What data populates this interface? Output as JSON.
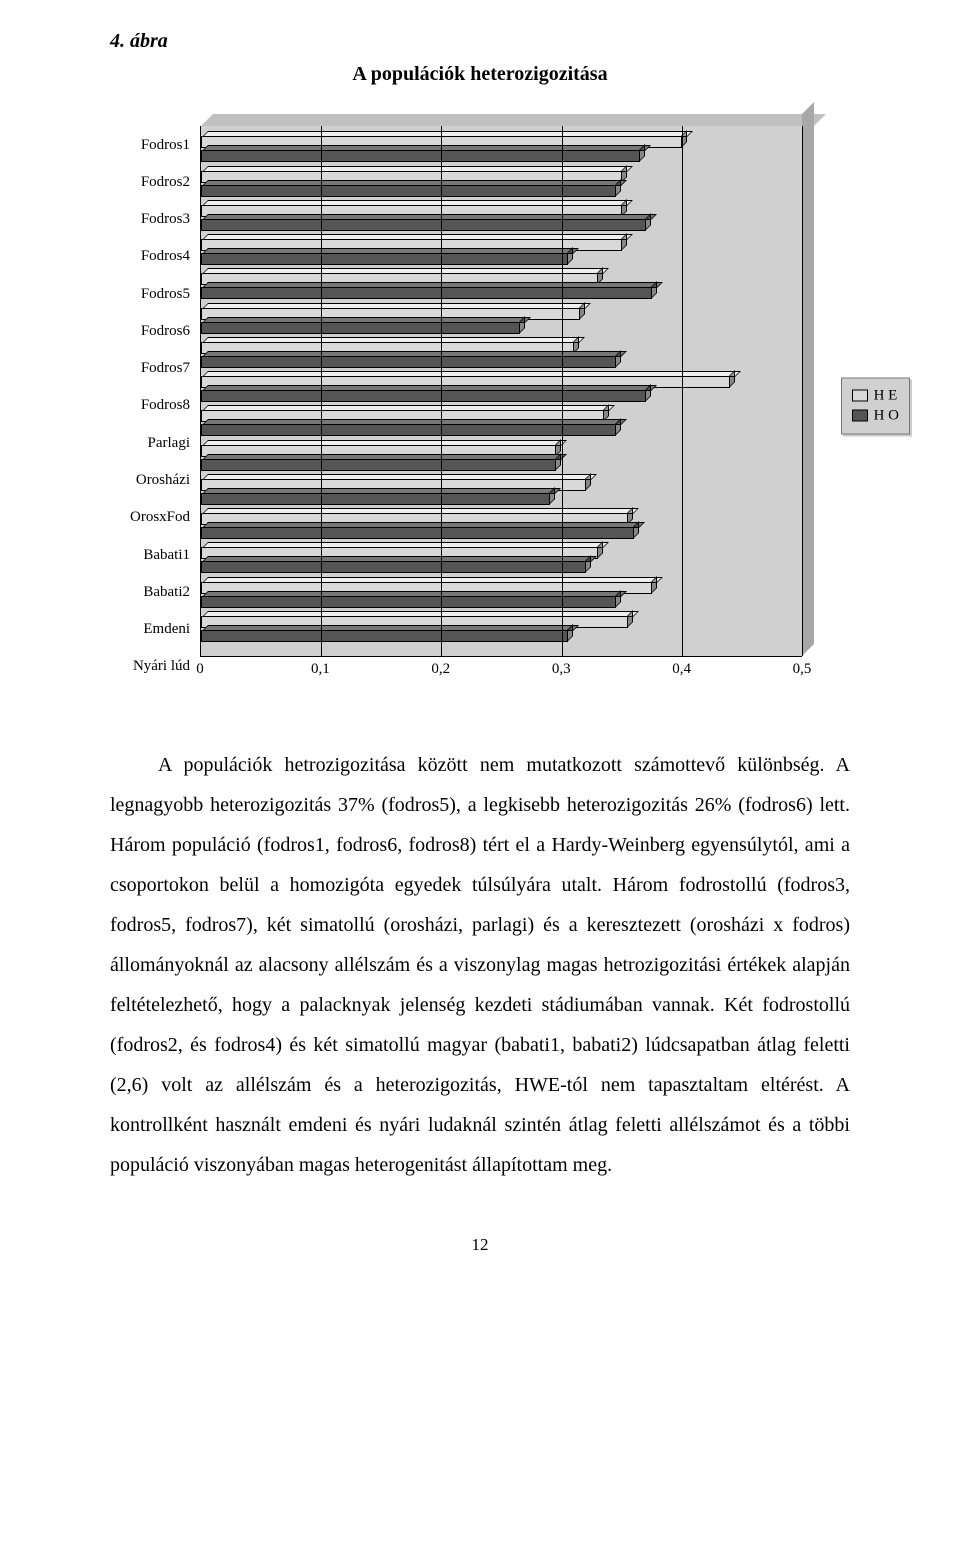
{
  "figure": {
    "number": "4. ábra",
    "title": "A populációk heterozigozitása",
    "type": "bar",
    "orientation": "horizontal",
    "xlim": [
      0,
      0.5
    ],
    "xtick_step": 0.1,
    "xticks": [
      "0",
      "0,1",
      "0,2",
      "0,3",
      "0,4",
      "0,5"
    ],
    "background_color": "#d0d0d0",
    "grid_color": "#000000",
    "bar_colors": {
      "HE": "#d9d9d9",
      "HO": "#555555"
    },
    "legend_items": [
      "H E",
      "H O"
    ],
    "categories": [
      {
        "label": "Fodros1",
        "HE": 0.4,
        "HO": 0.365
      },
      {
        "label": "Fodros2",
        "HE": 0.35,
        "HO": 0.345
      },
      {
        "label": "Fodros3",
        "HE": 0.35,
        "HO": 0.37
      },
      {
        "label": "Fodros4",
        "HE": 0.35,
        "HO": 0.305
      },
      {
        "label": "Fodros5",
        "HE": 0.33,
        "HO": 0.375
      },
      {
        "label": "Fodros6",
        "HE": 0.315,
        "HO": 0.265
      },
      {
        "label": "Fodros7",
        "HE": 0.31,
        "HO": 0.345
      },
      {
        "label": "Fodros8",
        "HE": 0.44,
        "HO": 0.37
      },
      {
        "label": "Parlagi",
        "HE": 0.335,
        "HO": 0.345
      },
      {
        "label": "Orosházi",
        "HE": 0.295,
        "HO": 0.295
      },
      {
        "label": "OrosxFod",
        "HE": 0.32,
        "HO": 0.29
      },
      {
        "label": "Babati1",
        "HE": 0.355,
        "HO": 0.36
      },
      {
        "label": "Babati2",
        "HE": 0.33,
        "HO": 0.32
      },
      {
        "label": "Emdeni",
        "HE": 0.375,
        "HO": 0.345
      },
      {
        "label": "Nyári lúd",
        "HE": 0.355,
        "HO": 0.305
      }
    ],
    "label_fontsize": 15,
    "tick_fontsize": 15
  },
  "paragraph": "A populációk hetrozigozitása között nem mutatkozott számottevő különbség. A legnagyobb heterozigozitás 37% (fodros5), a legkisebb heterozigozitás 26% (fodros6) lett. Három populáció (fodros1, fodros6, fodros8) tért el a Hardy-Weinberg egyensúlytól, ami a csoportokon belül a homozigóta egyedek túlsúlyára utalt. Három fodrostollú (fodros3, fodros5, fodros7), két simatollú (orosházi, parlagi) és a keresztezett (orosházi x fodros) állományoknál az alacsony allélszám és a viszonylag magas hetrozigozitási értékek alapján feltételezhető, hogy a palacknyak jelenség kezdeti stádiumában vannak. Két fodrostollú (fodros2, és fodros4) és két simatollú magyar (babati1, babati2) lúdcsapatban átlag feletti (2,6) volt az allélszám és a heterozigozitás, HWE-tól nem tapasztaltam eltérést. A kontrollként használt emdeni és nyári ludaknál szintén átlag feletti allélszámot és a többi populáció viszonyában magas heterogenitást állapítottam meg.",
  "page_number": "12"
}
